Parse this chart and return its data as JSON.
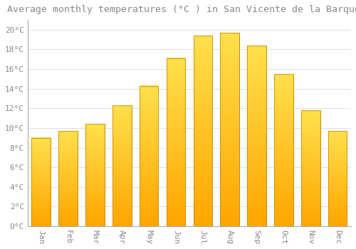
{
  "title": "Average monthly temperatures (°C ) in San Vicente de la Barquera",
  "months": [
    "Jan",
    "Feb",
    "Mar",
    "Apr",
    "May",
    "Jun",
    "Jul",
    "Aug",
    "Sep",
    "Oct",
    "Nov",
    "Dec"
  ],
  "values": [
    9.0,
    9.7,
    10.4,
    12.3,
    14.3,
    17.1,
    19.4,
    19.7,
    18.4,
    15.5,
    11.8,
    9.7
  ],
  "bar_color_top": "#FFD966",
  "bar_color_bottom": "#FFA500",
  "bar_edge_color": "#CC8800",
  "background_color": "#FFFFFF",
  "grid_color": "#DDDDDD",
  "text_color": "#888888",
  "spine_color": "#AAAAAA",
  "ylim": [
    0,
    21
  ],
  "yticks": [
    0,
    2,
    4,
    6,
    8,
    10,
    12,
    14,
    16,
    18,
    20
  ],
  "title_fontsize": 9.5,
  "tick_fontsize": 8,
  "bar_width": 0.7
}
